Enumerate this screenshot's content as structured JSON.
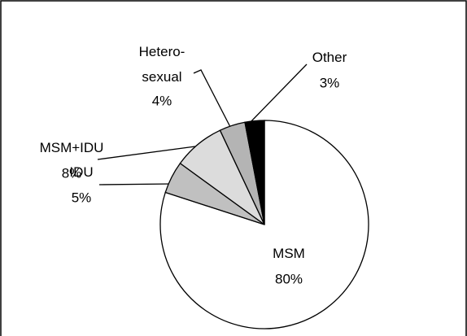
{
  "chart_data": {
    "type": "pie",
    "categories": [
      "MSM",
      "IDU",
      "MSM+IDU",
      "Hetero-\nsexual",
      "Other"
    ],
    "values": [
      80,
      5,
      8,
      4,
      3
    ],
    "value_labels": [
      "80%",
      "5%",
      "8%",
      "4%",
      "3%"
    ],
    "colors": [
      "#ffffff",
      "#c0c0c0",
      "#dcdcdc",
      "#b4b4b4",
      "#000000"
    ]
  }
}
